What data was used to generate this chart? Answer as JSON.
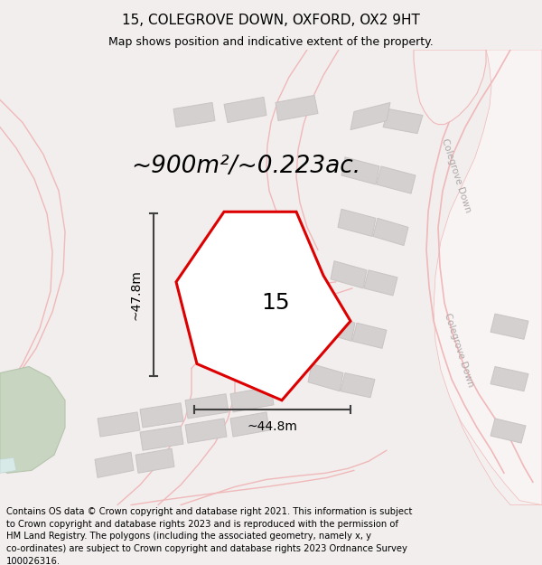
{
  "title": "15, COLEGROVE DOWN, OXFORD, OX2 9HT",
  "subtitle": "Map shows position and indicative extent of the property.",
  "area_label": "~900m²/~0.223ac.",
  "plot_number": "15",
  "width_label": "~44.8m",
  "height_label": "~47.8m",
  "footer_text": "Contains OS data © Crown copyright and database right 2021. This information is subject\nto Crown copyright and database rights 2023 and is reproduced with the permission of\nHM Land Registry. The polygons (including the associated geometry, namely x, y\nco-ordinates) are subject to Crown copyright and database rights 2023 Ordnance Survey\n100026316.",
  "bg_color": "#f2eeee",
  "map_bg": "#ffffff",
  "red_plot": "#dd0000",
  "gray_building": "#d4d0d0",
  "gray_building_edge": "#c8c4c4",
  "pink_road": "#f0b8b8",
  "road_label_color": "#b0a8a8",
  "title_fontsize": 11,
  "subtitle_fontsize": 9,
  "area_fontsize": 19,
  "plot_num_fontsize": 18,
  "dim_fontsize": 10,
  "footer_fontsize": 7.2,
  "colegrove_fontsize": 7.5
}
